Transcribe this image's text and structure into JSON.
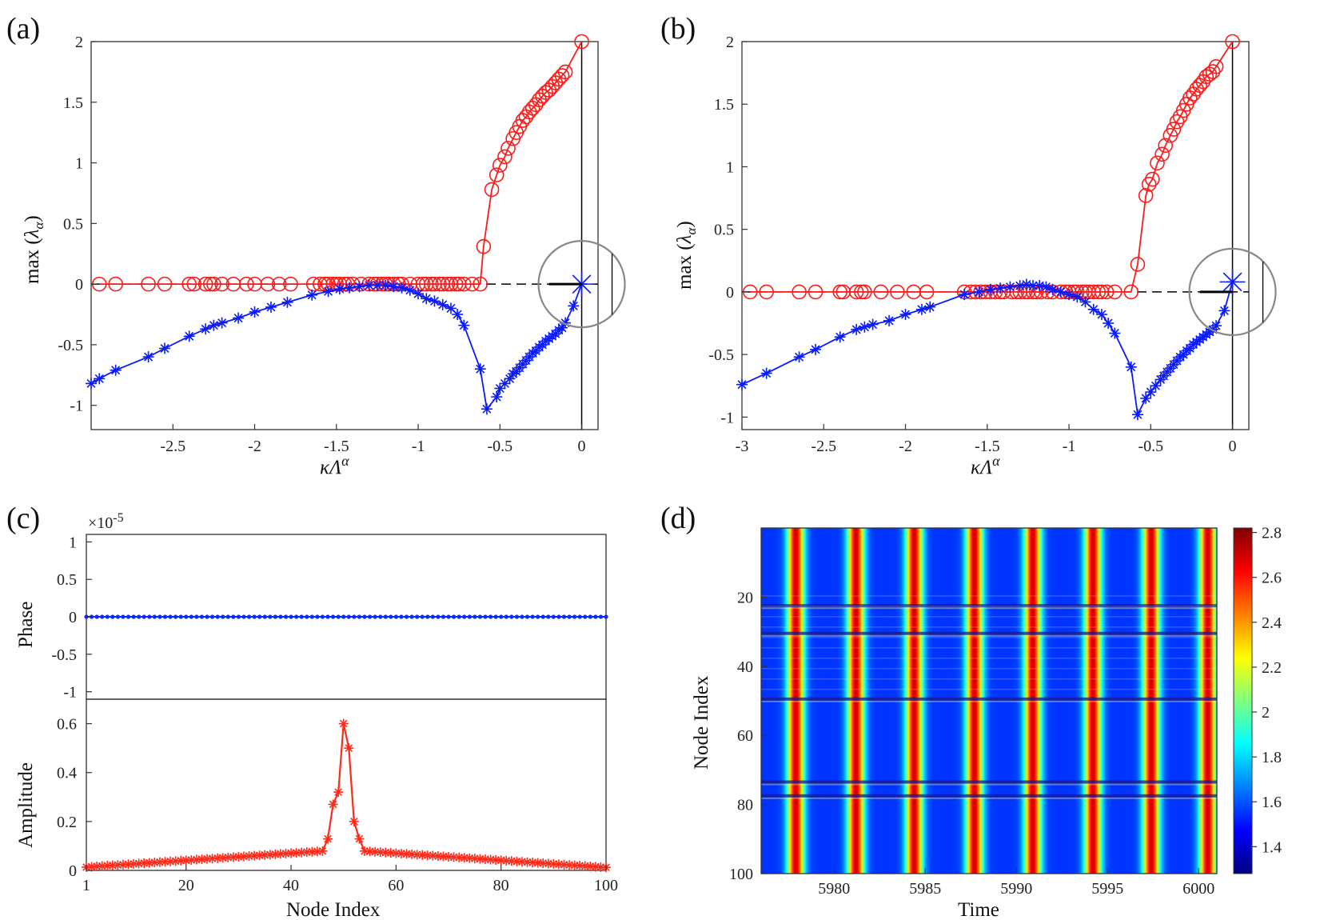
{
  "chart_data": [
    {
      "id": "a",
      "type": "line",
      "panel_label": "(a)",
      "xlabel": "κΛ^α",
      "ylabel": "max (λ_α)",
      "xlim": [
        -3.0,
        0.1
      ],
      "ylim": [
        -1.2,
        2.0
      ],
      "xticks": [
        "-2.5",
        "-2",
        "-1.5",
        "-1",
        "-0.5",
        "0"
      ],
      "yticks": [
        "-1",
        "-0.5",
        "0",
        "0.5",
        "1",
        "1.5",
        "2"
      ],
      "reference_line": 0,
      "highlight_point": [
        0,
        0
      ],
      "series": [
        {
          "name": "red-circles",
          "color": "#ff1a1a",
          "marker": "circle",
          "x": [
            -2.95,
            -2.85,
            -2.65,
            -2.55,
            -2.4,
            -2.37,
            -2.3,
            -2.27,
            -2.25,
            -2.2,
            -2.13,
            -2.05,
            -2.0,
            -1.92,
            -1.85,
            -1.78,
            -1.64,
            -1.6,
            -1.57,
            -1.55,
            -1.52,
            -1.5,
            -1.48,
            -1.45,
            -1.43,
            -1.4,
            -1.35,
            -1.3,
            -1.27,
            -1.25,
            -1.22,
            -1.2,
            -1.18,
            -1.15,
            -1.12,
            -1.1,
            -1.05,
            -1.0,
            -0.97,
            -0.95,
            -0.92,
            -0.9,
            -0.87,
            -0.85,
            -0.82,
            -0.8,
            -0.77,
            -0.75,
            -0.72,
            -0.67,
            -0.62,
            -0.6,
            -0.55,
            -0.52,
            -0.5,
            -0.47,
            -0.45,
            -0.42,
            -0.4,
            -0.38,
            -0.36,
            -0.34,
            -0.32,
            -0.3,
            -0.28,
            -0.26,
            -0.24,
            -0.22,
            -0.2,
            -0.18,
            -0.16,
            -0.14,
            -0.12,
            -0.1,
            0
          ],
          "y": [
            0,
            0,
            0,
            0,
            0,
            0,
            0,
            0,
            0,
            0,
            0,
            0,
            0,
            0,
            0,
            0,
            0,
            0,
            0,
            0,
            0,
            0,
            0,
            0,
            0,
            0,
            0,
            0,
            0,
            0,
            0,
            0,
            0,
            0,
            0,
            0,
            0,
            0,
            0,
            0,
            0,
            0,
            0,
            0,
            0,
            0,
            0,
            0,
            0,
            0,
            0,
            0.31,
            0.78,
            0.9,
            0.98,
            1.05,
            1.12,
            1.2,
            1.25,
            1.3,
            1.35,
            1.38,
            1.42,
            1.45,
            1.48,
            1.52,
            1.55,
            1.58,
            1.6,
            1.63,
            1.66,
            1.69,
            1.72,
            1.75,
            2.0
          ]
        },
        {
          "name": "blue-stars",
          "color": "#0a1aff",
          "marker": "star",
          "x": [
            -3.0,
            -2.95,
            -2.85,
            -2.65,
            -2.55,
            -2.4,
            -2.3,
            -2.25,
            -2.2,
            -2.1,
            -2.0,
            -1.9,
            -1.8,
            -1.65,
            -1.55,
            -1.48,
            -1.42,
            -1.36,
            -1.3,
            -1.25,
            -1.2,
            -1.15,
            -1.1,
            -1.05,
            -1.0,
            -0.95,
            -0.9,
            -0.85,
            -0.8,
            -0.76,
            -0.72,
            -0.62,
            -0.58,
            -0.52,
            -0.5,
            -0.47,
            -0.44,
            -0.42,
            -0.4,
            -0.38,
            -0.36,
            -0.34,
            -0.32,
            -0.3,
            -0.28,
            -0.26,
            -0.24,
            -0.22,
            -0.2,
            -0.18,
            -0.16,
            -0.14,
            -0.12,
            -0.1,
            -0.05,
            0
          ],
          "y": [
            -0.82,
            -0.78,
            -0.71,
            -0.6,
            -0.53,
            -0.43,
            -0.37,
            -0.34,
            -0.32,
            -0.28,
            -0.23,
            -0.19,
            -0.15,
            -0.09,
            -0.06,
            -0.04,
            -0.03,
            -0.02,
            -0.01,
            -0.01,
            -0.01,
            -0.02,
            -0.03,
            -0.05,
            -0.08,
            -0.12,
            -0.14,
            -0.17,
            -0.2,
            -0.25,
            -0.34,
            -0.7,
            -1.03,
            -0.93,
            -0.86,
            -0.82,
            -0.78,
            -0.74,
            -0.72,
            -0.69,
            -0.66,
            -0.63,
            -0.6,
            -0.57,
            -0.55,
            -0.52,
            -0.5,
            -0.47,
            -0.45,
            -0.43,
            -0.41,
            -0.38,
            -0.36,
            -0.32,
            -0.18,
            0
          ]
        }
      ]
    },
    {
      "id": "b",
      "type": "line",
      "panel_label": "(b)",
      "xlabel": "κΛ^α",
      "ylabel": "max (λ_α)",
      "xlim": [
        -3.0,
        0.1
      ],
      "ylim": [
        -1.1,
        2.0
      ],
      "xticks": [
        "-3",
        "-2.5",
        "-2",
        "-1.5",
        "-1",
        "-0.5",
        "0"
      ],
      "yticks": [
        "-1",
        "-0.5",
        "0",
        "0.5",
        "1",
        "1.5",
        "2"
      ],
      "reference_line": 0,
      "highlight_point": [
        0,
        0.08
      ],
      "series": [
        {
          "name": "red-circles",
          "color": "#ff1a1a",
          "marker": "circle",
          "x": [
            -2.95,
            -2.85,
            -2.65,
            -2.55,
            -2.4,
            -2.38,
            -2.3,
            -2.27,
            -2.25,
            -2.15,
            -2.05,
            -1.95,
            -1.87,
            -1.64,
            -1.6,
            -1.57,
            -1.54,
            -1.51,
            -1.48,
            -1.45,
            -1.42,
            -1.4,
            -1.35,
            -1.32,
            -1.3,
            -1.27,
            -1.25,
            -1.22,
            -1.2,
            -1.17,
            -1.13,
            -1.1,
            -1.05,
            -1.02,
            -1.0,
            -0.97,
            -0.95,
            -0.92,
            -0.9,
            -0.88,
            -0.85,
            -0.82,
            -0.8,
            -0.77,
            -0.72,
            -0.62,
            -0.58,
            -0.53,
            -0.51,
            -0.49,
            -0.46,
            -0.43,
            -0.41,
            -0.38,
            -0.36,
            -0.34,
            -0.32,
            -0.3,
            -0.28,
            -0.26,
            -0.24,
            -0.22,
            -0.2,
            -0.18,
            -0.16,
            -0.14,
            -0.12,
            -0.1,
            0
          ],
          "y": [
            0,
            0,
            0,
            0,
            0,
            0,
            0,
            0,
            0,
            0,
            0,
            0,
            0,
            0,
            0,
            0,
            0,
            0,
            0,
            0,
            0,
            0,
            0,
            0,
            0,
            0,
            0,
            0,
            0,
            0,
            0,
            0,
            0,
            0,
            0,
            0,
            0,
            0,
            0,
            0,
            0,
            0,
            0,
            0,
            0,
            0,
            0.22,
            0.77,
            0.86,
            0.9,
            1.03,
            1.1,
            1.17,
            1.25,
            1.3,
            1.36,
            1.4,
            1.45,
            1.5,
            1.55,
            1.58,
            1.62,
            1.65,
            1.68,
            1.72,
            1.74,
            1.76,
            1.8,
            2.0
          ]
        },
        {
          "name": "blue-stars",
          "color": "#0a1aff",
          "marker": "star",
          "x": [
            -3.0,
            -2.85,
            -2.65,
            -2.55,
            -2.4,
            -2.3,
            -2.25,
            -2.2,
            -2.1,
            -2.0,
            -1.9,
            -1.85,
            -1.64,
            -1.55,
            -1.48,
            -1.42,
            -1.36,
            -1.3,
            -1.26,
            -1.22,
            -1.18,
            -1.14,
            -1.1,
            -1.05,
            -1.0,
            -0.95,
            -0.9,
            -0.85,
            -0.8,
            -0.76,
            -0.72,
            -0.62,
            -0.58,
            -0.53,
            -0.5,
            -0.47,
            -0.44,
            -0.42,
            -0.4,
            -0.38,
            -0.36,
            -0.34,
            -0.32,
            -0.3,
            -0.28,
            -0.26,
            -0.24,
            -0.22,
            -0.2,
            -0.18,
            -0.16,
            -0.14,
            -0.12,
            -0.1,
            -0.05,
            0
          ],
          "y": [
            -0.74,
            -0.65,
            -0.52,
            -0.46,
            -0.36,
            -0.3,
            -0.28,
            -0.26,
            -0.23,
            -0.18,
            -0.14,
            -0.12,
            -0.02,
            0.0,
            0.02,
            0.03,
            0.04,
            0.05,
            0.06,
            0.05,
            0.05,
            0.04,
            0.02,
            0.0,
            -0.02,
            -0.04,
            -0.08,
            -0.14,
            -0.18,
            -0.25,
            -0.33,
            -0.6,
            -0.98,
            -0.85,
            -0.8,
            -0.75,
            -0.7,
            -0.67,
            -0.64,
            -0.61,
            -0.58,
            -0.55,
            -0.52,
            -0.5,
            -0.47,
            -0.45,
            -0.42,
            -0.4,
            -0.38,
            -0.36,
            -0.34,
            -0.32,
            -0.3,
            -0.27,
            -0.15,
            0.08
          ]
        }
      ]
    },
    {
      "id": "c-phase",
      "type": "scatter",
      "panel_label": "(c)",
      "ylabel": "Phase",
      "multiplier": "×10^-5",
      "xlim": [
        1,
        100
      ],
      "ylim": [
        -1.1,
        1.1
      ],
      "yticks": [
        "1",
        "0.5",
        "0",
        "-0.5",
        "-1"
      ],
      "series": [
        {
          "name": "phase",
          "color": "#0a2aff",
          "rule": "all nodes 1–100 at value 0"
        }
      ]
    },
    {
      "id": "c-amplitude",
      "type": "line",
      "xlabel": "Node Index",
      "ylabel": "Amplitude",
      "xlim": [
        1,
        100
      ],
      "ylim": [
        0,
        0.7
      ],
      "xticks": [
        "1",
        "20",
        "40",
        "60",
        "80",
        "100"
      ],
      "yticks": [
        "0.6",
        "0.4",
        "0.2",
        "0"
      ],
      "series": [
        {
          "name": "amplitude",
          "color": "#ff2a1a",
          "rule": "peak 0.6 at node 50, neighbours 0.32/0.5, 0.27/0.2, decaying to ~0.01 at edges"
        }
      ]
    },
    {
      "id": "d",
      "type": "heatmap",
      "panel_label": "(d)",
      "xlabel": "Time",
      "ylabel": "Node Index",
      "xlim": [
        5976,
        6001
      ],
      "ylim": [
        1,
        100
      ],
      "xticks": [
        "5980",
        "5985",
        "5990",
        "5995",
        "6000"
      ],
      "yticks": [
        "20",
        "40",
        "60",
        "80",
        "100"
      ],
      "colorbar_ticks": [
        "2.8",
        "2.6",
        "2.4",
        "2.2",
        "2",
        "1.8",
        "1.6",
        "1.4"
      ],
      "colorbar_range": [
        1.28,
        2.82
      ],
      "colormap": "jet",
      "peak_times": [
        5977.9,
        5981.2,
        5984.4,
        5987.7,
        5990.9,
        5994.2,
        5997.4,
        6000.5
      ],
      "dark_rows": [
        23,
        31,
        50,
        74,
        78
      ]
    }
  ]
}
